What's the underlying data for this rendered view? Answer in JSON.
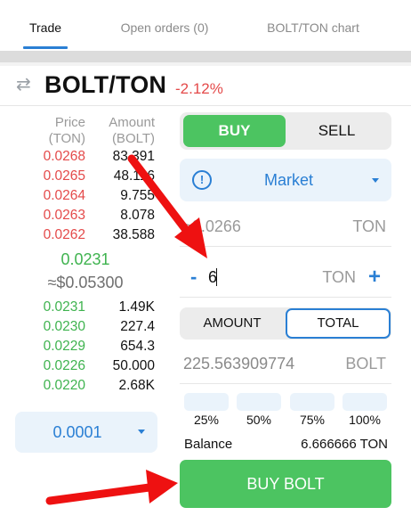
{
  "tabs": [
    {
      "label": "Trade",
      "active": true
    },
    {
      "label": "Open orders (0)",
      "active": false
    },
    {
      "label": "BOLT/TON chart",
      "active": false
    }
  ],
  "pair": {
    "name": "BOLT/TON",
    "change": "-2.12%"
  },
  "orderbook": {
    "price_header": [
      "Price",
      "(TON)"
    ],
    "amount_header": [
      "Amount",
      "(BOLT)"
    ],
    "asks": [
      {
        "price": "0.0268",
        "amount": "83.391"
      },
      {
        "price": "0.0265",
        "amount": "48.116"
      },
      {
        "price": "0.0264",
        "amount": "9.755"
      },
      {
        "price": "0.0263",
        "amount": "8.078"
      },
      {
        "price": "0.0262",
        "amount": "38.588"
      }
    ],
    "last_price": "0.0231",
    "last_price_usd": "≈$0.05300",
    "bids": [
      {
        "price": "0.0231",
        "amount": "1.49K"
      },
      {
        "price": "0.0230",
        "amount": "227.4"
      },
      {
        "price": "0.0229",
        "amount": "654.3"
      },
      {
        "price": "0.0226",
        "amount": "50.000"
      },
      {
        "price": "0.0220",
        "amount": "2.68K"
      }
    ],
    "step": "0.0001"
  },
  "form": {
    "buy_label": "BUY",
    "sell_label": "SELL",
    "order_type": "Market",
    "price_value": "≈0.0266",
    "price_unit": "TON",
    "minus_symbol": "-",
    "quantity_value": "6",
    "quantity_unit": "TON",
    "plus_symbol": "+",
    "mode_amount": "AMOUNT",
    "mode_total": "TOTAL",
    "total_value": "225.563909774",
    "total_unit": "BOLT",
    "percents": [
      "25%",
      "50%",
      "75%",
      "100%"
    ],
    "balance_label": "Balance",
    "balance_value": "6.666666 TON",
    "submit_label": "BUY BOLT"
  },
  "colors": {
    "buy_green": "#4cc461",
    "ask_red": "#e44a4a",
    "accent_blue": "#2a7fd4",
    "annotation_red": "#ee1111"
  }
}
